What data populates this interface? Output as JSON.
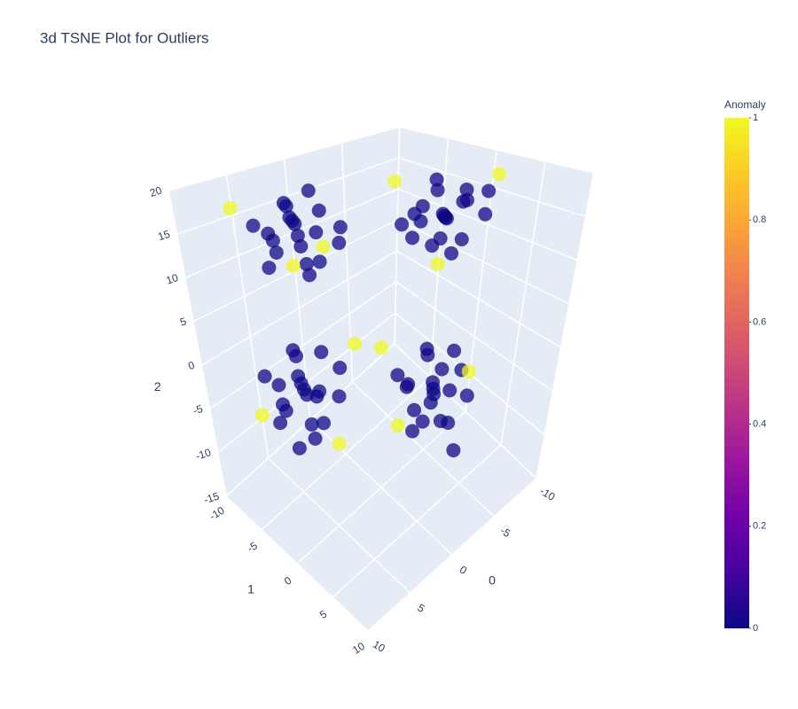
{
  "chart_data": {
    "type": "scatter3d",
    "title": "3d TSNE Plot for Outliers",
    "x_title": "0",
    "y_title": "1",
    "z_title": "2",
    "xlim": [
      -10,
      10
    ],
    "ylim": [
      -10,
      10
    ],
    "zlim": [
      -15,
      20
    ],
    "xticks": [
      -10,
      -5,
      0,
      5,
      10
    ],
    "yticks": [
      -10,
      -5,
      0,
      5,
      10
    ],
    "zticks": [
      -15,
      -10,
      -5,
      0,
      5,
      10,
      15,
      20
    ],
    "grid": true,
    "x": [
      5,
      6,
      4,
      7,
      5,
      3,
      6,
      4,
      8,
      5,
      3,
      7,
      6,
      4,
      2,
      8,
      5,
      6,
      3,
      7,
      9,
      2,
      8,
      -4,
      -3,
      -5,
      -2,
      -4,
      -6,
      -3,
      -5,
      -2,
      -4,
      -6,
      -3,
      -1,
      -5,
      -2,
      -4,
      -7,
      -3,
      -1,
      -6,
      -2,
      -1,
      -6,
      4,
      5,
      3,
      6,
      4,
      2,
      5,
      3,
      7,
      4,
      2,
      6,
      5,
      3,
      1,
      7,
      4,
      6,
      2,
      5,
      1,
      7,
      3,
      -3,
      -2,
      -4,
      -1,
      -3,
      -5,
      -2,
      -4,
      -1,
      -3,
      -5,
      -2,
      0,
      -4,
      -1,
      -3,
      -6,
      -2,
      0,
      -5,
      0,
      -4,
      -1
    ],
    "y": [
      -3,
      -2,
      -4,
      -3,
      -1,
      -3,
      -5,
      -2,
      -2,
      -4,
      -1,
      -4,
      -1,
      -5,
      -2,
      -4,
      -2,
      -3,
      -4,
      -1,
      -5,
      -4,
      0,
      2,
      3,
      1,
      2,
      4,
      2,
      0,
      3,
      4,
      1,
      4,
      2,
      3,
      0,
      1,
      3,
      3,
      5,
      1,
      0,
      -1,
      5,
      5,
      -5,
      -4,
      -6,
      -5,
      -3,
      -5,
      -7,
      -4,
      -4,
      -6,
      -3,
      -6,
      -3,
      -7,
      -4,
      -6,
      -4,
      -3,
      -6,
      -5,
      -2,
      -7,
      -2,
      3,
      4,
      2,
      3,
      5,
      3,
      1,
      4,
      5,
      2,
      5,
      3,
      4,
      1,
      2,
      6,
      3,
      5,
      2,
      2,
      0,
      6,
      1
    ],
    "z": [
      15,
      17,
      13,
      14,
      16,
      17,
      15,
      12,
      16,
      18,
      14,
      12,
      13,
      16,
      15,
      17,
      11,
      19,
      19,
      18,
      19,
      12,
      14,
      15,
      16,
      14,
      17,
      13,
      16,
      15,
      18,
      14,
      19,
      15,
      12,
      16,
      17,
      13,
      11,
      17,
      18,
      15,
      13,
      19,
      12,
      20,
      -4,
      -2,
      -6,
      -5,
      -3,
      -1,
      -4,
      -8,
      -3,
      0,
      -5,
      -7,
      -6,
      -2,
      -3,
      -1,
      -9,
      0,
      -7,
      -10,
      1,
      -6,
      -9,
      -4,
      -2,
      -6,
      -5,
      -3,
      -1,
      -4,
      -8,
      -3,
      0,
      -5,
      -7,
      -6,
      -2,
      -3,
      -9,
      -4,
      0,
      -1,
      -10,
      1,
      -1,
      -8
    ],
    "color_values": [
      0,
      0,
      0,
      0,
      0,
      0,
      0,
      0,
      0,
      0,
      0,
      0,
      0,
      0,
      0,
      0,
      0,
      0,
      0,
      0,
      1,
      1,
      1,
      0,
      0,
      0,
      0,
      0,
      0,
      0,
      0,
      0,
      0,
      0,
      0,
      0,
      0,
      0,
      0,
      0,
      0,
      0,
      0,
      1,
      1,
      1,
      0,
      0,
      0,
      0,
      0,
      0,
      0,
      0,
      0,
      0,
      0,
      0,
      0,
      0,
      0,
      0,
      0,
      0,
      0,
      0,
      1,
      1,
      1,
      0,
      0,
      0,
      0,
      0,
      0,
      0,
      0,
      0,
      0,
      0,
      0,
      0,
      0,
      0,
      0,
      0,
      0,
      0,
      0,
      1,
      1,
      1
    ],
    "colorbar": {
      "title": "Anomaly",
      "range": [
        0,
        1
      ],
      "ticks": [
        0,
        0.2,
        0.4,
        0.6,
        0.8,
        1
      ],
      "colorscale": [
        [
          0,
          "#0d0887"
        ],
        [
          0.111,
          "#46039f"
        ],
        [
          0.222,
          "#7201a8"
        ],
        [
          0.333,
          "#9c179e"
        ],
        [
          0.444,
          "#bd3786"
        ],
        [
          0.556,
          "#d8576b"
        ],
        [
          0.667,
          "#ed7953"
        ],
        [
          0.778,
          "#fb9f3a"
        ],
        [
          0.889,
          "#fdca26"
        ],
        [
          1,
          "#f0f921"
        ]
      ]
    }
  }
}
